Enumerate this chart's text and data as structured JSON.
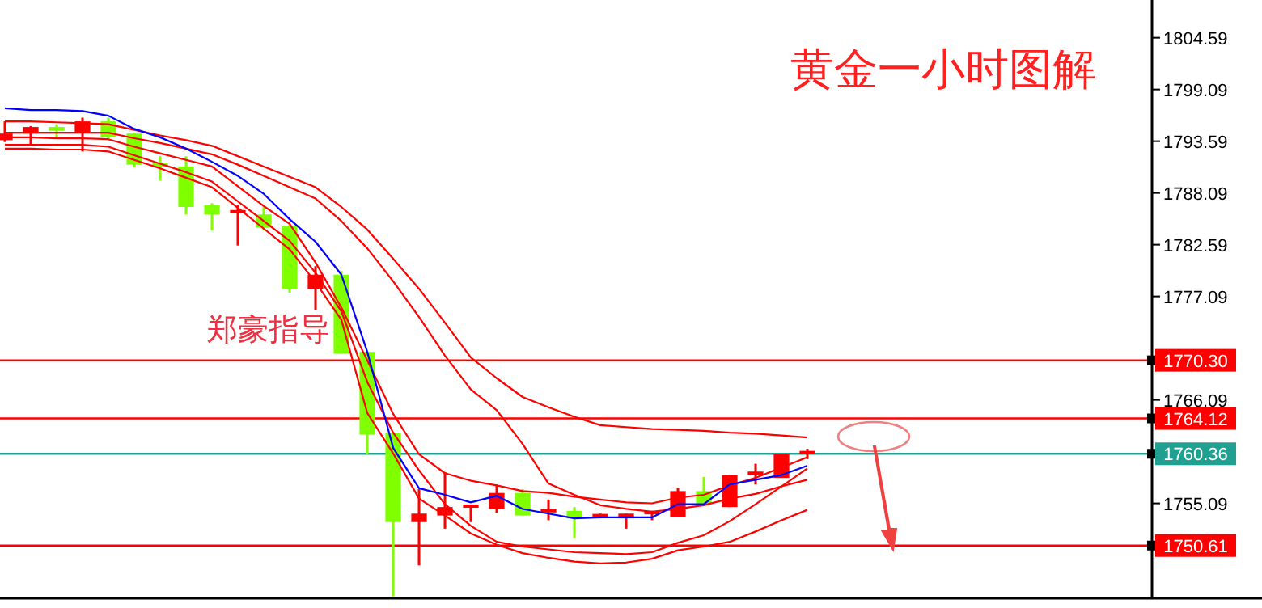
{
  "chart_data": {
    "type": "candlestick",
    "title": "黄金一小时图解",
    "annotations": [
      "郑豪指导"
    ],
    "categories": [
      null,
      null,
      null,
      null,
      null,
      null,
      null,
      null,
      null,
      null,
      null,
      null,
      null,
      null,
      null,
      null,
      null,
      null,
      null,
      null,
      null,
      null,
      null,
      null,
      null,
      null,
      null,
      null,
      null,
      null,
      null,
      null
    ],
    "ohlc": [
      [
        1793.7,
        1795.7,
        1793.5,
        1794.4
      ],
      [
        1794.4,
        1795.2,
        1793.3,
        1795.1
      ],
      [
        1795.1,
        1795.4,
        1793.9,
        1794.7
      ],
      [
        1794.5,
        1796.1,
        1792.5,
        1795.7
      ],
      [
        1795.7,
        1796.1,
        1793.9,
        1794.0
      ],
      [
        1794.4,
        1794.5,
        1790.8,
        1791.1
      ],
      [
        1791.3,
        1792.0,
        1789.4,
        1790.9
      ],
      [
        1790.9,
        1792.0,
        1785.8,
        1786.6
      ],
      [
        1786.8,
        1787.0,
        1784.1,
        1785.8
      ],
      [
        1785.9,
        1786.8,
        1782.5,
        1786.1
      ],
      [
        1785.8,
        1786.6,
        1784.1,
        1784.4
      ],
      [
        1784.6,
        1784.7,
        1777.5,
        1777.9
      ],
      [
        1777.9,
        1780.3,
        1775.6,
        1779.4
      ],
      [
        1779.4,
        1779.8,
        1771.0,
        1771.0
      ],
      [
        1771.2,
        1771.2,
        1760.3,
        1762.4
      ],
      [
        1762.6,
        1762.6,
        1745.2,
        1753.1
      ],
      [
        1753.1,
        1756.6,
        1748.5,
        1754.0
      ],
      [
        1753.8,
        1758.4,
        1752.4,
        1754.7
      ],
      [
        1754.5,
        1754.8,
        1753.1,
        1754.8
      ],
      [
        1754.5,
        1757.1,
        1754.1,
        1756.2
      ],
      [
        1756.2,
        1756.6,
        1753.8,
        1753.8
      ],
      [
        1754.0,
        1755.5,
        1753.3,
        1754.3
      ],
      [
        1754.3,
        1754.7,
        1751.4,
        1753.5
      ],
      [
        1753.8,
        1754.0,
        1753.5,
        1753.8
      ],
      [
        1753.5,
        1754.0,
        1752.4,
        1754.0
      ],
      [
        1754.0,
        1754.3,
        1753.3,
        1754.1
      ],
      [
        1753.6,
        1756.7,
        1753.6,
        1756.4
      ],
      [
        1756.4,
        1757.9,
        1755.0,
        1755.0
      ],
      [
        1754.7,
        1758.1,
        1754.7,
        1758.1
      ],
      [
        1758.1,
        1759.3,
        1757.1,
        1758.3
      ],
      [
        1757.8,
        1760.3,
        1757.8,
        1760.3
      ],
      [
        1760.3,
        1760.9,
        1759.8,
        1760.5
      ]
    ],
    "colors": [
      "#ff0000",
      "#ff0000",
      "#7fff00",
      "#ff0000",
      "#7fff00",
      "#7fff00",
      "#7fff00",
      "#7fff00",
      "#7fff00",
      "#ff0000",
      "#7fff00",
      "#7fff00",
      "#ff0000",
      "#7fff00",
      "#7fff00",
      "#7fff00",
      "#ff0000",
      "#ff0000",
      "#ff0000",
      "#ff0000",
      "#7fff00",
      "#ff0000",
      "#7fff00",
      "#ff0000",
      "#ff0000",
      "#ff0000",
      "#ff0000",
      "#7fff00",
      "#ff0000",
      "#ff0000",
      "#ff0000",
      "#ff0000"
    ],
    "series": [
      {
        "type": "line",
        "color": "#ff0000",
        "values": [
          1795.7,
          1795.7,
          1795.6,
          1795.5,
          1795.4,
          1794.8,
          1794.2,
          1793.7,
          1793.1,
          1792.0,
          1790.9,
          1789.8,
          1788.7,
          1786.6,
          1784.2,
          1781.1,
          1777.9,
          1774.3,
          1770.6,
          1768.4,
          1766.4,
          1765.3,
          1764.3,
          1763.4,
          1763.2,
          1763.0,
          1762.9,
          1762.8,
          1762.6,
          1762.5,
          1762.3,
          1762.1
        ]
      },
      {
        "type": "line",
        "color": "#ff0000",
        "values": [
          1794.5,
          1794.5,
          1794.5,
          1794.5,
          1794.5,
          1793.9,
          1793.4,
          1792.8,
          1792.2,
          1791.1,
          1789.9,
          1788.7,
          1787.5,
          1785.1,
          1782.2,
          1778.7,
          1774.9,
          1770.8,
          1767.2,
          1765.0,
          1761.4,
          1757.2,
          1756.0,
          1754.9,
          1754.5,
          1754.2,
          1754.5,
          1754.9,
          1755.6,
          1756.1,
          1756.9,
          1757.6
        ]
      },
      {
        "type": "line",
        "color": "#ff0000",
        "values": [
          1794.0,
          1794.0,
          1793.9,
          1793.9,
          1793.8,
          1793.0,
          1792.3,
          1791.6,
          1790.9,
          1788.8,
          1786.7,
          1784.8,
          1780.7,
          1775.9,
          1770.3,
          1764.6,
          1760.3,
          1758.3,
          1757.5,
          1757.0,
          1756.4,
          1756.2,
          1755.8,
          1755.5,
          1755.2,
          1755.1,
          1755.7,
          1756.0,
          1757.0,
          1757.8,
          1758.9,
          1760.0
        ]
      },
      {
        "type": "line",
        "color": "#ff0000",
        "values": [
          1793.2,
          1793.2,
          1793.2,
          1793.2,
          1793.0,
          1792.1,
          1791.2,
          1790.3,
          1789.3,
          1787.2,
          1785.1,
          1783.0,
          1779.6,
          1775.5,
          1768.0,
          1762.6,
          1758.6,
          1755.0,
          1752.7,
          1751.0,
          1750.5,
          1750.2,
          1749.9,
          1749.8,
          1749.7,
          1749.9,
          1750.9,
          1751.7,
          1753.2,
          1755.0,
          1756.9,
          1758.8
        ]
      },
      {
        "type": "line",
        "color": "#ff0000",
        "values": [
          1792.8,
          1792.8,
          1792.7,
          1792.7,
          1792.5,
          1791.6,
          1790.7,
          1789.7,
          1788.7,
          1786.5,
          1784.3,
          1782.1,
          1778.6,
          1774.6,
          1764.7,
          1760.4,
          1755.6,
          1753.8,
          1751.9,
          1750.7,
          1749.8,
          1749.3,
          1748.9,
          1748.7,
          1748.8,
          1749.2,
          1750.1,
          1750.5,
          1751.0,
          1752.1,
          1753.3,
          1754.4
        ]
      },
      {
        "type": "line",
        "color": "#0000ff",
        "values": [
          1797.1,
          1796.9,
          1796.9,
          1796.8,
          1796.3,
          1794.9,
          1794.0,
          1792.8,
          1791.4,
          1789.9,
          1788.0,
          1785.3,
          1782.9,
          1779.4,
          1771.2,
          1761.0,
          1756.7,
          1756.0,
          1755.2,
          1755.9,
          1754.5,
          1754.0,
          1753.5,
          1753.6,
          1753.6,
          1753.6,
          1755.0,
          1755.0,
          1757.1,
          1757.6,
          1758.1,
          1759.1
        ]
      }
    ],
    "ylim": [
      1745.0,
      1808.6
    ],
    "yticks": [
      1804.59,
      1799.09,
      1793.59,
      1788.09,
      1782.59,
      1777.09,
      1766.09,
      1755.09
    ],
    "ref_lines": [
      {
        "axis": "y",
        "value": 1770.3,
        "label": "1770.30",
        "color": "#ff0000"
      },
      {
        "axis": "y",
        "value": 1764.12,
        "label": "1764.12",
        "color": "#ff0000"
      },
      {
        "axis": "y",
        "value": 1760.36,
        "label": "1760.36",
        "color": "#20a090"
      },
      {
        "axis": "y",
        "value": 1750.61,
        "label": "1750.61",
        "color": "#ff0000"
      }
    ],
    "tick_labels": "y",
    "grid": false
  }
}
